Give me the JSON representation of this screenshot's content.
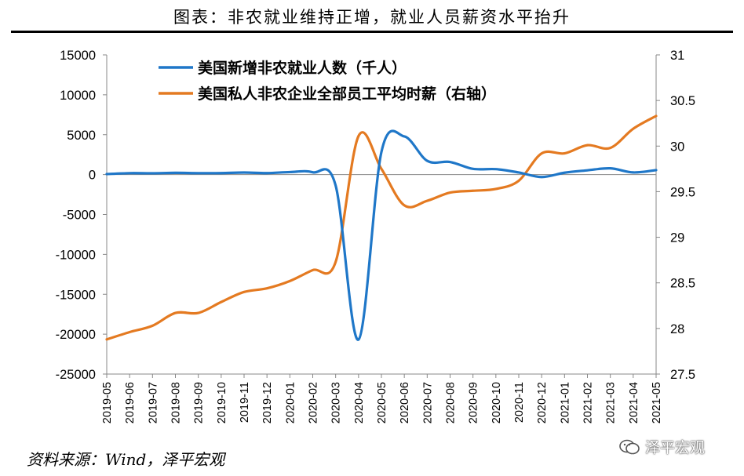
{
  "header": {
    "title": "图表：非农就业维持正增，就业人员薪资水平抬升"
  },
  "footer": {
    "source": "资料来源：Wind，泽平宏观",
    "watermark": "泽平宏观"
  },
  "chart_data": {
    "type": "line",
    "title": "图表：非农就业维持正增，就业人员薪资水平抬升",
    "categories": [
      "2019-05",
      "2019-06",
      "2019-07",
      "2019-08",
      "2019-09",
      "2019-10",
      "2019-11",
      "2019-12",
      "2020-01",
      "2020-02",
      "2020-03",
      "2020-04",
      "2020-05",
      "2020-06",
      "2020-07",
      "2020-08",
      "2020-09",
      "2020-10",
      "2020-11",
      "2020-12",
      "2021-01",
      "2021-02",
      "2021-03",
      "2021-04",
      "2021-05"
    ],
    "y_left": {
      "ticks": [
        15000,
        10000,
        5000,
        0,
        -5000,
        -10000,
        -15000,
        -20000,
        -25000
      ],
      "ylim": [
        -25000,
        15000
      ]
    },
    "y_right": {
      "ticks": [
        "31",
        "30.5",
        "30",
        "29.5",
        "29",
        "28.5",
        "28",
        "27.5"
      ],
      "ylim": [
        27.5,
        31
      ]
    },
    "legend_position": "top-left",
    "series": [
      {
        "name": "美国新增非农就业人数（千人）",
        "axis": "left",
        "color": "#1f77c8",
        "values": [
          62,
          178,
          166,
          219,
          180,
          185,
          256,
          184,
          315,
          289,
          -1373,
          -20679,
          2833,
          4781,
          1726,
          1583,
          716,
          680,
          264,
          -306,
          233,
          536,
          785,
          269,
          559
        ]
      },
      {
        "name": "美国私人非农企业全部员工平均时薪（右轴）",
        "axis": "right",
        "color": "#e47a21",
        "values": [
          27.88,
          27.96,
          28.03,
          28.17,
          28.17,
          28.29,
          28.4,
          28.44,
          28.52,
          28.64,
          28.73,
          30.11,
          29.75,
          29.35,
          29.4,
          29.49,
          29.51,
          29.53,
          29.62,
          29.92,
          29.92,
          30.01,
          29.98,
          30.19,
          30.33
        ]
      }
    ]
  }
}
